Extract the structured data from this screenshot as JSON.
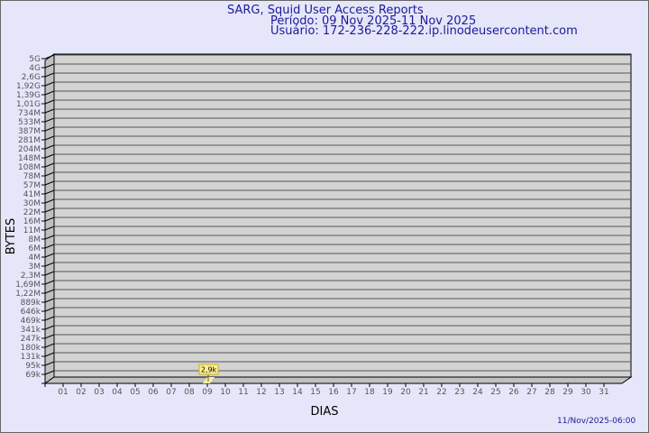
{
  "chart_data": {
    "type": "bar",
    "title": "SARG, Squid User Access Reports",
    "subtitle_period": "Período: 09 Nov 2025-11 Nov 2025",
    "subtitle_user": "Usuário: 172-236-228-222.ip.linodeusercontent.com",
    "xlabel": "DIAS",
    "ylabel": "BYTES",
    "yscale": "log",
    "y_tick_labels": [
      "5G",
      "4G",
      "2,6G",
      "1,92G",
      "1,39G",
      "1,01G",
      "734M",
      "533M",
      "387M",
      "281M",
      "204M",
      "148M",
      "108M",
      "78M",
      "57M",
      "41M",
      "30M",
      "22M",
      "16M",
      "11M",
      "8M",
      "6M",
      "4M",
      "3M",
      "2,3M",
      "1,69M",
      "1,22M",
      "889k",
      "646k",
      "469k",
      "341k",
      "247k",
      "180k",
      "131k",
      "95k",
      "69k"
    ],
    "categories": [
      "01",
      "02",
      "03",
      "04",
      "05",
      "06",
      "07",
      "08",
      "09",
      "10",
      "11",
      "12",
      "13",
      "14",
      "15",
      "16",
      "17",
      "18",
      "19",
      "20",
      "21",
      "22",
      "23",
      "24",
      "25",
      "26",
      "27",
      "28",
      "29",
      "30",
      "31"
    ],
    "bars": [
      {
        "category": "09",
        "value": 2900,
        "label": "2,9k"
      }
    ],
    "grid": true,
    "colors": {
      "wall": "#d3d3d3",
      "side": "#c0c0c0",
      "grid": "#555555",
      "bar": "#ffee99",
      "label_border": "#c8b400",
      "title": "#1a1a99"
    },
    "footer_timestamp": "11/Nov/2025-06:00"
  }
}
